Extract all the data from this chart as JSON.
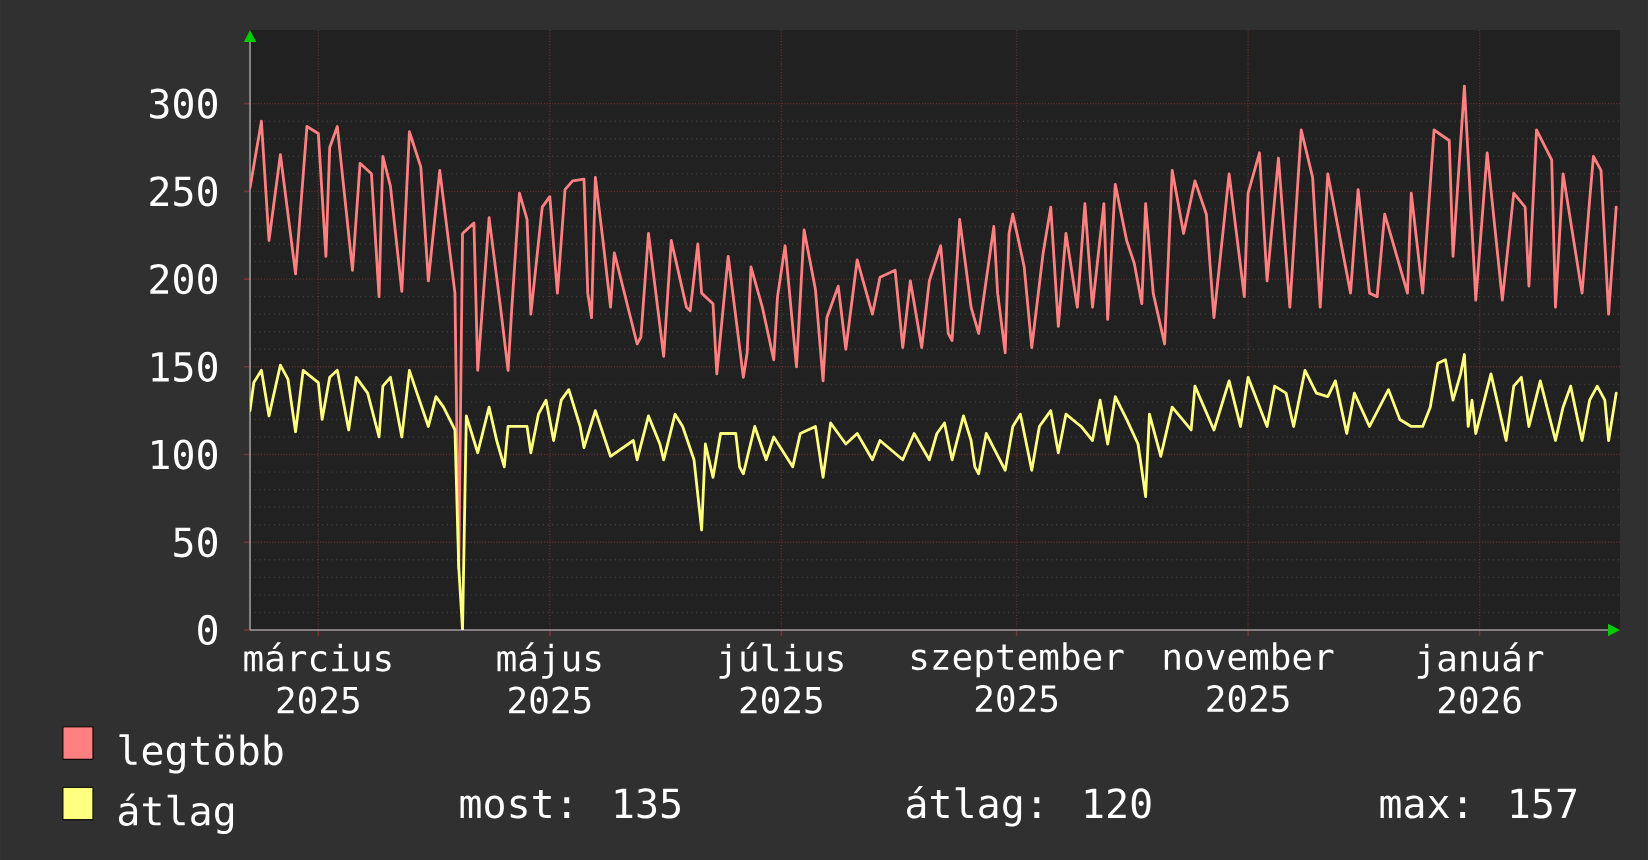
{
  "chart_data": {
    "type": "line",
    "series": [
      {
        "name": "legtöbb",
        "color": "#ff8080",
        "x": [
          "2025-02-26",
          "2025-03-01",
          "2025-03-03",
          "2025-03-06",
          "2025-03-10",
          "2025-03-13",
          "2025-03-16",
          "2025-03-18",
          "2025-03-19",
          "2025-03-21",
          "2025-03-25",
          "2025-03-27",
          "2025-03-30",
          "2025-04-01",
          "2025-04-02",
          "2025-04-04",
          "2025-04-07",
          "2025-04-09",
          "2025-04-12",
          "2025-04-14",
          "2025-04-17",
          "2025-04-21",
          "2025-04-22",
          "2025-04-23",
          "2025-04-26",
          "2025-04-27",
          "2025-04-30",
          "2025-05-03",
          "2025-05-05",
          "2025-05-06",
          "2025-05-08",
          "2025-05-10",
          "2025-05-11",
          "2025-05-14",
          "2025-05-16",
          "2025-05-18",
          "2025-05-20",
          "2025-05-22",
          "2025-05-25",
          "2025-05-26",
          "2025-05-27",
          "2025-05-28",
          "2025-05-30",
          "2025-06-01",
          "2025-06-02",
          "2025-06-08",
          "2025-06-09",
          "2025-06-11",
          "2025-06-15",
          "2025-06-17",
          "2025-06-21",
          "2025-06-22",
          "2025-06-24",
          "2025-06-25",
          "2025-06-28",
          "2025-06-29",
          "2025-07-02",
          "2025-07-06",
          "2025-07-07",
          "2025-07-08",
          "2025-07-11",
          "2025-07-14",
          "2025-07-15",
          "2025-07-17",
          "2025-07-20",
          "2025-07-22",
          "2025-07-25",
          "2025-07-27",
          "2025-07-28",
          "2025-07-31",
          "2025-08-02",
          "2025-08-05",
          "2025-08-09",
          "2025-08-11",
          "2025-08-15",
          "2025-08-17",
          "2025-08-19",
          "2025-08-22",
          "2025-08-24",
          "2025-08-27",
          "2025-08-29",
          "2025-08-30",
          "2025-09-01",
          "2025-09-04",
          "2025-09-06",
          "2025-09-10",
          "2025-09-11",
          "2025-09-13",
          "2025-09-14",
          "2025-09-15",
          "2025-09-18",
          "2025-09-20",
          "2025-09-23",
          "2025-09-25",
          "2025-09-27",
          "2025-09-29",
          "2025-10-02",
          "2025-10-04",
          "2025-10-06",
          "2025-10-09",
          "2025-10-10",
          "2025-10-12",
          "2025-10-15",
          "2025-10-17",
          "2025-10-19",
          "2025-10-20",
          "2025-10-22",
          "2025-10-25",
          "2025-10-27",
          "2025-10-30",
          "2025-11-02",
          "2025-11-05",
          "2025-11-07",
          "2025-11-11",
          "2025-11-15",
          "2025-11-16",
          "2025-11-19",
          "2025-11-21",
          "2025-11-24",
          "2025-11-27",
          "2025-11-30",
          "2025-12-03",
          "2025-12-05",
          "2025-12-07",
          "2025-12-13",
          "2025-12-15",
          "2025-12-18",
          "2025-12-20",
          "2025-12-22",
          "2025-12-28",
          "2025-12-29",
          "2026-01-01",
          "2026-01-04",
          "2026-01-08",
          "2026-01-09",
          "2026-01-12",
          "2026-01-15",
          "2026-01-18",
          "2026-01-22",
          "2026-01-25",
          "2026-01-28",
          "2026-01-29",
          "2026-01-31",
          "2026-02-04",
          "2026-02-05",
          "2026-02-07",
          "2026-02-12",
          "2026-02-14",
          "2026-02-15",
          "2026-02-17",
          "2026-02-19",
          "2026-02-21"
        ],
        "values": [
          252,
          290,
          222,
          271,
          203,
          287,
          283,
          213,
          275,
          287,
          205,
          266,
          260,
          190,
          270,
          253,
          193,
          284,
          264,
          199,
          262,
          192,
          35,
          226,
          232,
          148,
          235,
          184,
          148,
          184,
          249,
          234,
          180,
          241,
          247,
          192,
          251,
          256,
          257,
          192,
          178,
          258,
          222,
          184,
          215,
          163,
          167,
          226,
          156,
          222,
          184,
          182,
          220,
          192,
          186,
          146,
          213,
          144,
          158,
          207,
          184,
          154,
          190,
          219,
          150,
          228,
          194,
          142,
          178,
          196,
          160,
          211,
          180,
          201,
          205,
          161,
          199,
          161,
          199,
          219,
          169,
          165,
          234,
          184,
          169,
          230,
          192,
          158,
          226,
          237,
          207,
          161,
          215,
          241,
          173,
          226,
          184,
          243,
          184,
          243,
          177,
          254,
          222,
          209,
          186,
          243,
          192,
          163,
          262,
          226,
          256,
          237,
          178,
          260,
          190,
          249,
          272,
          199,
          269,
          184,
          285,
          258,
          184,
          260,
          192,
          251,
          192,
          190,
          237,
          192,
          249,
          192,
          285,
          279,
          213,
          310,
          188,
          272,
          188,
          249,
          241,
          196,
          285,
          268,
          184,
          260,
          192,
          245,
          270,
          262,
          180,
          241
        ]
      },
      {
        "name": "átlag",
        "color": "#ffff80",
        "x": [
          "2025-02-26",
          "2025-02-27",
          "2025-03-01",
          "2025-03-03",
          "2025-03-06",
          "2025-03-08",
          "2025-03-10",
          "2025-03-12",
          "2025-03-16",
          "2025-03-17",
          "2025-03-19",
          "2025-03-21",
          "2025-03-24",
          "2025-03-26",
          "2025-03-29",
          "2025-04-01",
          "2025-04-02",
          "2025-04-04",
          "2025-04-07",
          "2025-04-09",
          "2025-04-11",
          "2025-04-14",
          "2025-04-16",
          "2025-04-18",
          "2025-04-21",
          "2025-04-22",
          "2025-04-23",
          "2025-04-24",
          "2025-04-27",
          "2025-04-30",
          "2025-05-02",
          "2025-05-04",
          "2025-05-05",
          "2025-05-10",
          "2025-05-11",
          "2025-05-13",
          "2025-05-15",
          "2025-05-17",
          "2025-05-19",
          "2025-05-21",
          "2025-05-24",
          "2025-05-25",
          "2025-05-28",
          "2025-06-01",
          "2025-06-07",
          "2025-06-08",
          "2025-06-11",
          "2025-06-14",
          "2025-06-15",
          "2025-06-18",
          "2025-06-20",
          "2025-06-23",
          "2025-06-25",
          "2025-06-26",
          "2025-06-28",
          "2025-06-30",
          "2025-07-04",
          "2025-07-05",
          "2025-07-06",
          "2025-07-09",
          "2025-07-12",
          "2025-07-14",
          "2025-07-19",
          "2025-07-21",
          "2025-07-25",
          "2025-07-27",
          "2025-07-29",
          "2025-08-02",
          "2025-08-05",
          "2025-08-09",
          "2025-08-11",
          "2025-08-17",
          "2025-08-20",
          "2025-08-24",
          "2025-08-26",
          "2025-08-28",
          "2025-08-30",
          "2025-09-02",
          "2025-09-04",
          "2025-09-05",
          "2025-09-06",
          "2025-09-08",
          "2025-09-13",
          "2025-09-15",
          "2025-09-17",
          "2025-09-20",
          "2025-09-22",
          "2025-09-25",
          "2025-09-27",
          "2025-09-29",
          "2025-10-03",
          "2025-10-06",
          "2025-10-08",
          "2025-10-10",
          "2025-10-12",
          "2025-10-15",
          "2025-10-18",
          "2025-10-20",
          "2025-10-21",
          "2025-10-24",
          "2025-10-27",
          "2025-11-01",
          "2025-11-02",
          "2025-11-07",
          "2025-11-11",
          "2025-11-14",
          "2025-11-16",
          "2025-11-21",
          "2025-11-23",
          "2025-11-26",
          "2025-11-28",
          "2025-12-01",
          "2025-12-04",
          "2025-12-07",
          "2025-12-09",
          "2025-12-12",
          "2025-12-14",
          "2025-12-18",
          "2025-12-23",
          "2025-12-26",
          "2025-12-29",
          "2026-01-01",
          "2026-01-03",
          "2026-01-05",
          "2026-01-07",
          "2026-01-09",
          "2026-01-11",
          "2026-01-12",
          "2026-01-13",
          "2026-01-14",
          "2026-01-15",
          "2026-01-19",
          "2026-01-23",
          "2026-01-25",
          "2026-01-27",
          "2026-01-29",
          "2026-02-01",
          "2026-02-05",
          "2026-02-07",
          "2026-02-09",
          "2026-02-12",
          "2026-02-14",
          "2026-02-16",
          "2026-02-18",
          "2026-02-19",
          "2026-02-21"
        ],
        "values": [
          125,
          141,
          148,
          122,
          151,
          143,
          113,
          148,
          141,
          120,
          144,
          148,
          114,
          144,
          135,
          110,
          139,
          144,
          110,
          148,
          135,
          116,
          133,
          127,
          114,
          36,
          0,
          122,
          101,
          127,
          108,
          93,
          116,
          116,
          101,
          123,
          131,
          108,
          131,
          137,
          116,
          104,
          125,
          99,
          108,
          97,
          122,
          106,
          97,
          123,
          116,
          97,
          57,
          106,
          87,
          112,
          112,
          93,
          89,
          116,
          97,
          110,
          93,
          112,
          116,
          87,
          118,
          106,
          112,
          97,
          108,
          97,
          112,
          97,
          112,
          118,
          97,
          122,
          108,
          93,
          89,
          112,
          91,
          116,
          123,
          91,
          116,
          125,
          101,
          123,
          116,
          108,
          131,
          106,
          133,
          120,
          106,
          76,
          123,
          99,
          127,
          114,
          139,
          114,
          142,
          116,
          144,
          116,
          139,
          135,
          116,
          148,
          135,
          133,
          142,
          112,
          135,
          116,
          137,
          120,
          116,
          116,
          127,
          152,
          154,
          131,
          146,
          157,
          116,
          131,
          112,
          146,
          108,
          139,
          144,
          116,
          142,
          108,
          127,
          139,
          108,
          131,
          139,
          131,
          108,
          135
        ]
      }
    ],
    "xlim": [
      "2025-02-26",
      "2026-02-22"
    ],
    "xticks": [
      {
        "value": "2025-03-16",
        "label": "március 2025"
      },
      {
        "value": "2025-05-16",
        "label": "május 2025"
      },
      {
        "value": "2025-07-16",
        "label": "július 2025"
      },
      {
        "value": "2025-09-16",
        "label": "szeptember 2025"
      },
      {
        "value": "2025-11-16",
        "label": "november 2025"
      },
      {
        "value": "2026-01-16",
        "label": "január 2026"
      }
    ],
    "ylim": [
      0,
      342
    ],
    "yticks": [
      0,
      50,
      100,
      150,
      200,
      250,
      300
    ],
    "grid": true,
    "legend": "bottom left",
    "line_style": "solid",
    "annotations": [
      "most: 135",
      "átlag: 120",
      "max: 157"
    ]
  }
}
